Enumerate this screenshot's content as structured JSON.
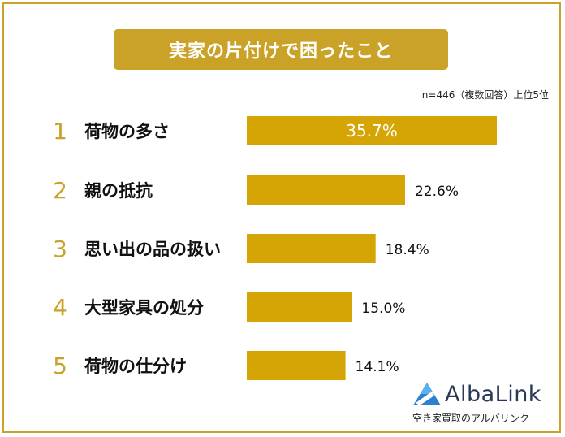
{
  "header": {
    "title": "実家の片付けで困ったこと",
    "note": "n=446（複数回答）上位5位"
  },
  "colors": {
    "accent": "#c9a227",
    "bar": "#d4a505",
    "rank": "#c9a227",
    "text": "#111111"
  },
  "chart_data": {
    "type": "bar",
    "orientation": "horizontal",
    "title": "実家の片付けで困ったこと",
    "ranks": [
      "1",
      "2",
      "3",
      "4",
      "5"
    ],
    "categories": [
      "荷物の多さ",
      "親の抵抗",
      "思い出の品の扱い",
      "大型家具の処分",
      "荷物の仕分け"
    ],
    "values": [
      35.7,
      22.6,
      18.4,
      15.0,
      14.1
    ],
    "value_labels": [
      "35.7%",
      "22.6%",
      "18.4%",
      "15.0%",
      "14.1%"
    ],
    "unit": "%",
    "xlim": [
      0,
      35.7
    ],
    "grid": false,
    "legend": "none"
  },
  "logo": {
    "name": "AlbaLink",
    "tagline": "空き家買取のアルバリンク"
  }
}
